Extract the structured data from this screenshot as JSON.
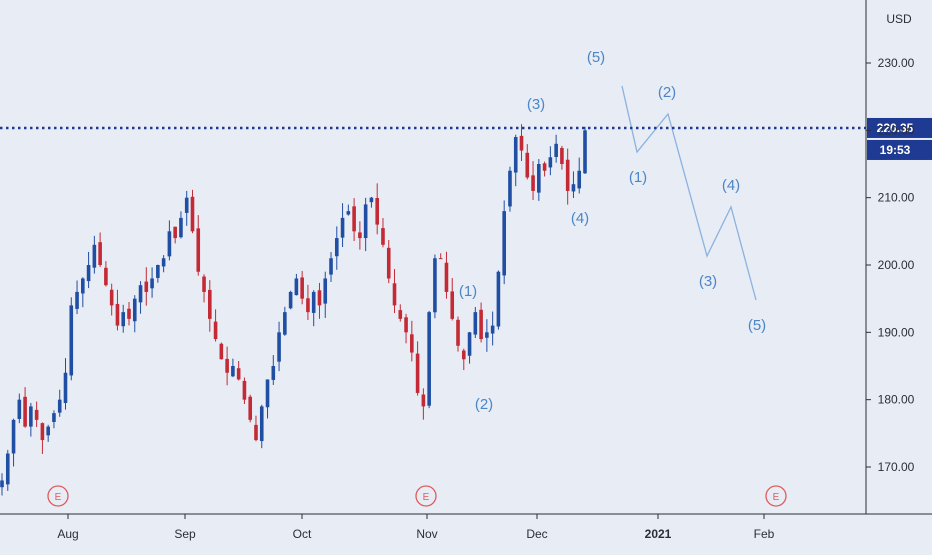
{
  "chart_data": {
    "type": "candlestick",
    "price_axis": {
      "unit": "USD",
      "ticks": [
        "230.00",
        "220.00",
        "210.00",
        "200.00",
        "190.00",
        "180.00",
        "170.00"
      ],
      "ylim": [
        164,
        236
      ]
    },
    "time_axis": {
      "ticks": [
        {
          "label": "Aug",
          "bold": false
        },
        {
          "label": "Sep",
          "bold": false
        },
        {
          "label": "Oct",
          "bold": false
        },
        {
          "label": "Nov",
          "bold": false
        },
        {
          "label": "Dec",
          "bold": false
        },
        {
          "label": "2021",
          "bold": true
        },
        {
          "label": "Feb",
          "bold": false
        }
      ]
    },
    "last_price": {
      "value": 220.35,
      "label": "220.35",
      "countdown": "19:53",
      "line_style": "dotted"
    },
    "earnings_markers": [
      "E",
      "E",
      "E"
    ],
    "close_path": [
      168,
      172,
      177,
      180,
      176,
      179,
      177,
      174,
      176,
      178,
      180,
      184,
      194,
      196,
      198,
      200,
      203,
      200,
      197,
      194,
      191,
      193,
      192,
      195,
      197,
      196,
      198,
      200,
      201,
      205,
      204,
      207,
      210,
      205,
      199,
      196,
      192,
      189,
      186,
      184,
      185,
      183,
      180,
      177,
      174,
      179,
      183,
      185,
      190,
      193,
      196,
      198,
      195,
      193,
      196,
      194,
      198,
      201,
      204,
      207,
      208,
      205,
      204,
      209,
      210,
      206,
      203,
      198,
      194,
      192,
      190,
      187,
      181,
      179,
      193,
      201,
      201,
      196,
      192,
      188,
      186,
      190,
      193,
      189,
      190,
      191,
      199,
      208,
      214,
      219,
      217,
      213,
      211,
      215,
      214,
      216,
      218,
      215,
      211,
      212,
      214,
      220
    ],
    "elliott_labels_actual": [
      "(1)",
      "(2)",
      "(3)",
      "(4)",
      "(5)"
    ],
    "elliott_labels_forecast": [
      "(1)",
      "(2)",
      "(3)",
      "(4)",
      "(5)"
    ],
    "colors": {
      "up": "#1f4ea3",
      "down": "#c32a35",
      "wave_label": "#4a86c8",
      "forecast_line": "#8bb2e0",
      "price_line": "#1f3a93",
      "background": "#e8ecf4",
      "earnings": "#e05a5a"
    }
  }
}
